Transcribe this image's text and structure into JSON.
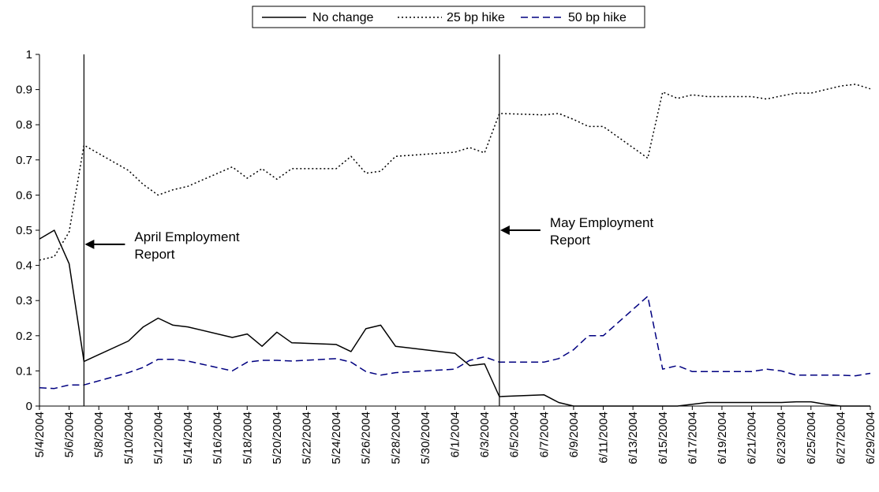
{
  "chart_data": {
    "type": "line",
    "title": "",
    "xlabel": "",
    "ylabel": "",
    "ylim": [
      0,
      1
    ],
    "y_ticks": [
      "0",
      "0.1",
      "0.2",
      "0.3",
      "0.4",
      "0.5",
      "0.6",
      "0.7",
      "0.8",
      "0.9",
      "1"
    ],
    "x_range": [
      "2004-05-04",
      "2004-06-29"
    ],
    "x_tick_labels": [
      "5/4/2004",
      "5/6/2004",
      "5/8/2004",
      "5/10/2004",
      "5/12/2004",
      "5/14/2004",
      "5/16/2004",
      "5/18/2004",
      "5/20/2004",
      "5/22/2004",
      "5/24/2004",
      "5/26/2004",
      "5/28/2004",
      "5/30/2004",
      "6/1/2004",
      "6/3/2004",
      "6/5/2004",
      "6/7/2004",
      "6/9/2004",
      "6/11/2004",
      "6/13/2004",
      "6/15/2004",
      "6/17/2004",
      "6/19/2004",
      "6/21/2004",
      "6/23/2004",
      "6/25/2004",
      "6/27/2004",
      "6/29/2004"
    ],
    "x_tick_dates": [
      "2004-05-04",
      "2004-05-06",
      "2004-05-08",
      "2004-05-10",
      "2004-05-12",
      "2004-05-14",
      "2004-05-16",
      "2004-05-18",
      "2004-05-20",
      "2004-05-22",
      "2004-05-24",
      "2004-05-26",
      "2004-05-28",
      "2004-05-30",
      "2004-06-01",
      "2004-06-03",
      "2004-06-05",
      "2004-06-07",
      "2004-06-09",
      "2004-06-11",
      "2004-06-13",
      "2004-06-15",
      "2004-06-17",
      "2004-06-19",
      "2004-06-21",
      "2004-06-23",
      "2004-06-25",
      "2004-06-27",
      "2004-06-29"
    ],
    "legend_position": "top-center",
    "series": [
      {
        "name": "No change",
        "line_style": "solid",
        "color": "#000000",
        "points": [
          [
            "2004-05-04",
            0.475
          ],
          [
            "2004-05-05",
            0.5
          ],
          [
            "2004-05-06",
            0.405
          ],
          [
            "2004-05-07",
            0.127
          ],
          [
            "2004-05-10",
            0.185
          ],
          [
            "2004-05-11",
            0.225
          ],
          [
            "2004-05-12",
            0.25
          ],
          [
            "2004-05-13",
            0.23
          ],
          [
            "2004-05-14",
            0.225
          ],
          [
            "2004-05-17",
            0.195
          ],
          [
            "2004-05-18",
            0.205
          ],
          [
            "2004-05-19",
            0.17
          ],
          [
            "2004-05-20",
            0.21
          ],
          [
            "2004-05-21",
            0.18
          ],
          [
            "2004-05-24",
            0.175
          ],
          [
            "2004-05-25",
            0.155
          ],
          [
            "2004-05-26",
            0.22
          ],
          [
            "2004-05-27",
            0.23
          ],
          [
            "2004-05-28",
            0.17
          ],
          [
            "2004-06-01",
            0.15
          ],
          [
            "2004-06-02",
            0.115
          ],
          [
            "2004-06-03",
            0.12
          ],
          [
            "2004-06-04",
            0.027
          ],
          [
            "2004-06-07",
            0.032
          ],
          [
            "2004-06-08",
            0.01
          ],
          [
            "2004-06-09",
            0.0
          ],
          [
            "2004-06-10",
            0.0
          ],
          [
            "2004-06-11",
            0.0
          ],
          [
            "2004-06-14",
            0.0
          ],
          [
            "2004-06-15",
            0.0
          ],
          [
            "2004-06-16",
            0.0
          ],
          [
            "2004-06-17",
            0.005
          ],
          [
            "2004-06-18",
            0.01
          ],
          [
            "2004-06-21",
            0.01
          ],
          [
            "2004-06-22",
            0.01
          ],
          [
            "2004-06-23",
            0.01
          ],
          [
            "2004-06-24",
            0.012
          ],
          [
            "2004-06-25",
            0.012
          ],
          [
            "2004-06-26",
            0.005
          ],
          [
            "2004-06-27",
            0.0
          ],
          [
            "2004-06-28",
            0.0
          ],
          [
            "2004-06-29",
            0.0
          ]
        ]
      },
      {
        "name": "25 bp hike",
        "line_style": "dotted",
        "color": "#000000",
        "points": [
          [
            "2004-05-04",
            0.415
          ],
          [
            "2004-05-05",
            0.425
          ],
          [
            "2004-05-06",
            0.495
          ],
          [
            "2004-05-07",
            0.742
          ],
          [
            "2004-05-10",
            0.67
          ],
          [
            "2004-05-11",
            0.63
          ],
          [
            "2004-05-12",
            0.6
          ],
          [
            "2004-05-13",
            0.615
          ],
          [
            "2004-05-14",
            0.625
          ],
          [
            "2004-05-17",
            0.68
          ],
          [
            "2004-05-18",
            0.648
          ],
          [
            "2004-05-19",
            0.675
          ],
          [
            "2004-05-20",
            0.645
          ],
          [
            "2004-05-21",
            0.675
          ],
          [
            "2004-05-24",
            0.675
          ],
          [
            "2004-05-25",
            0.71
          ],
          [
            "2004-05-26",
            0.662
          ],
          [
            "2004-05-27",
            0.668
          ],
          [
            "2004-05-28",
            0.71
          ],
          [
            "2004-06-01",
            0.722
          ],
          [
            "2004-06-02",
            0.735
          ],
          [
            "2004-06-03",
            0.72
          ],
          [
            "2004-06-04",
            0.832
          ],
          [
            "2004-06-07",
            0.828
          ],
          [
            "2004-06-08",
            0.832
          ],
          [
            "2004-06-09",
            0.815
          ],
          [
            "2004-06-10",
            0.795
          ],
          [
            "2004-06-11",
            0.795
          ],
          [
            "2004-06-14",
            0.705
          ],
          [
            "2004-06-15",
            0.893
          ],
          [
            "2004-06-16",
            0.875
          ],
          [
            "2004-06-17",
            0.885
          ],
          [
            "2004-06-18",
            0.88
          ],
          [
            "2004-06-21",
            0.88
          ],
          [
            "2004-06-22",
            0.873
          ],
          [
            "2004-06-23",
            0.882
          ],
          [
            "2004-06-24",
            0.89
          ],
          [
            "2004-06-25",
            0.89
          ],
          [
            "2004-06-26",
            0.9
          ],
          [
            "2004-06-27",
            0.91
          ],
          [
            "2004-06-28",
            0.915
          ],
          [
            "2004-06-29",
            0.902
          ]
        ]
      },
      {
        "name": "50 bp hike",
        "line_style": "dashed",
        "color": "#000080",
        "points": [
          [
            "2004-05-04",
            0.052
          ],
          [
            "2004-05-05",
            0.05
          ],
          [
            "2004-05-06",
            0.06
          ],
          [
            "2004-05-07",
            0.06
          ],
          [
            "2004-05-10",
            0.095
          ],
          [
            "2004-05-11",
            0.11
          ],
          [
            "2004-05-12",
            0.133
          ],
          [
            "2004-05-13",
            0.133
          ],
          [
            "2004-05-14",
            0.128
          ],
          [
            "2004-05-17",
            0.1
          ],
          [
            "2004-05-18",
            0.125
          ],
          [
            "2004-05-19",
            0.13
          ],
          [
            "2004-05-20",
            0.13
          ],
          [
            "2004-05-21",
            0.128
          ],
          [
            "2004-05-24",
            0.135
          ],
          [
            "2004-05-25",
            0.125
          ],
          [
            "2004-05-26",
            0.098
          ],
          [
            "2004-05-27",
            0.088
          ],
          [
            "2004-05-28",
            0.095
          ],
          [
            "2004-06-01",
            0.105
          ],
          [
            "2004-06-02",
            0.13
          ],
          [
            "2004-06-03",
            0.14
          ],
          [
            "2004-06-04",
            0.125
          ],
          [
            "2004-06-07",
            0.125
          ],
          [
            "2004-06-08",
            0.135
          ],
          [
            "2004-06-09",
            0.16
          ],
          [
            "2004-06-10",
            0.2
          ],
          [
            "2004-06-11",
            0.2
          ],
          [
            "2004-06-14",
            0.312
          ],
          [
            "2004-06-15",
            0.105
          ],
          [
            "2004-06-16",
            0.115
          ],
          [
            "2004-06-17",
            0.098
          ],
          [
            "2004-06-18",
            0.098
          ],
          [
            "2004-06-21",
            0.098
          ],
          [
            "2004-06-22",
            0.105
          ],
          [
            "2004-06-23",
            0.1
          ],
          [
            "2004-06-24",
            0.088
          ],
          [
            "2004-06-25",
            0.088
          ],
          [
            "2004-06-26",
            0.088
          ],
          [
            "2004-06-27",
            0.088
          ],
          [
            "2004-06-28",
            0.086
          ],
          [
            "2004-06-29",
            0.093
          ]
        ]
      }
    ],
    "annotations": [
      {
        "date": "2004-05-07",
        "label_line1": "April Employment",
        "label_line2": "Report",
        "arrow_y": 0.46
      },
      {
        "date": "2004-06-04",
        "label_line1": "May Employment",
        "label_line2": "Report",
        "arrow_y": 0.5
      }
    ]
  }
}
